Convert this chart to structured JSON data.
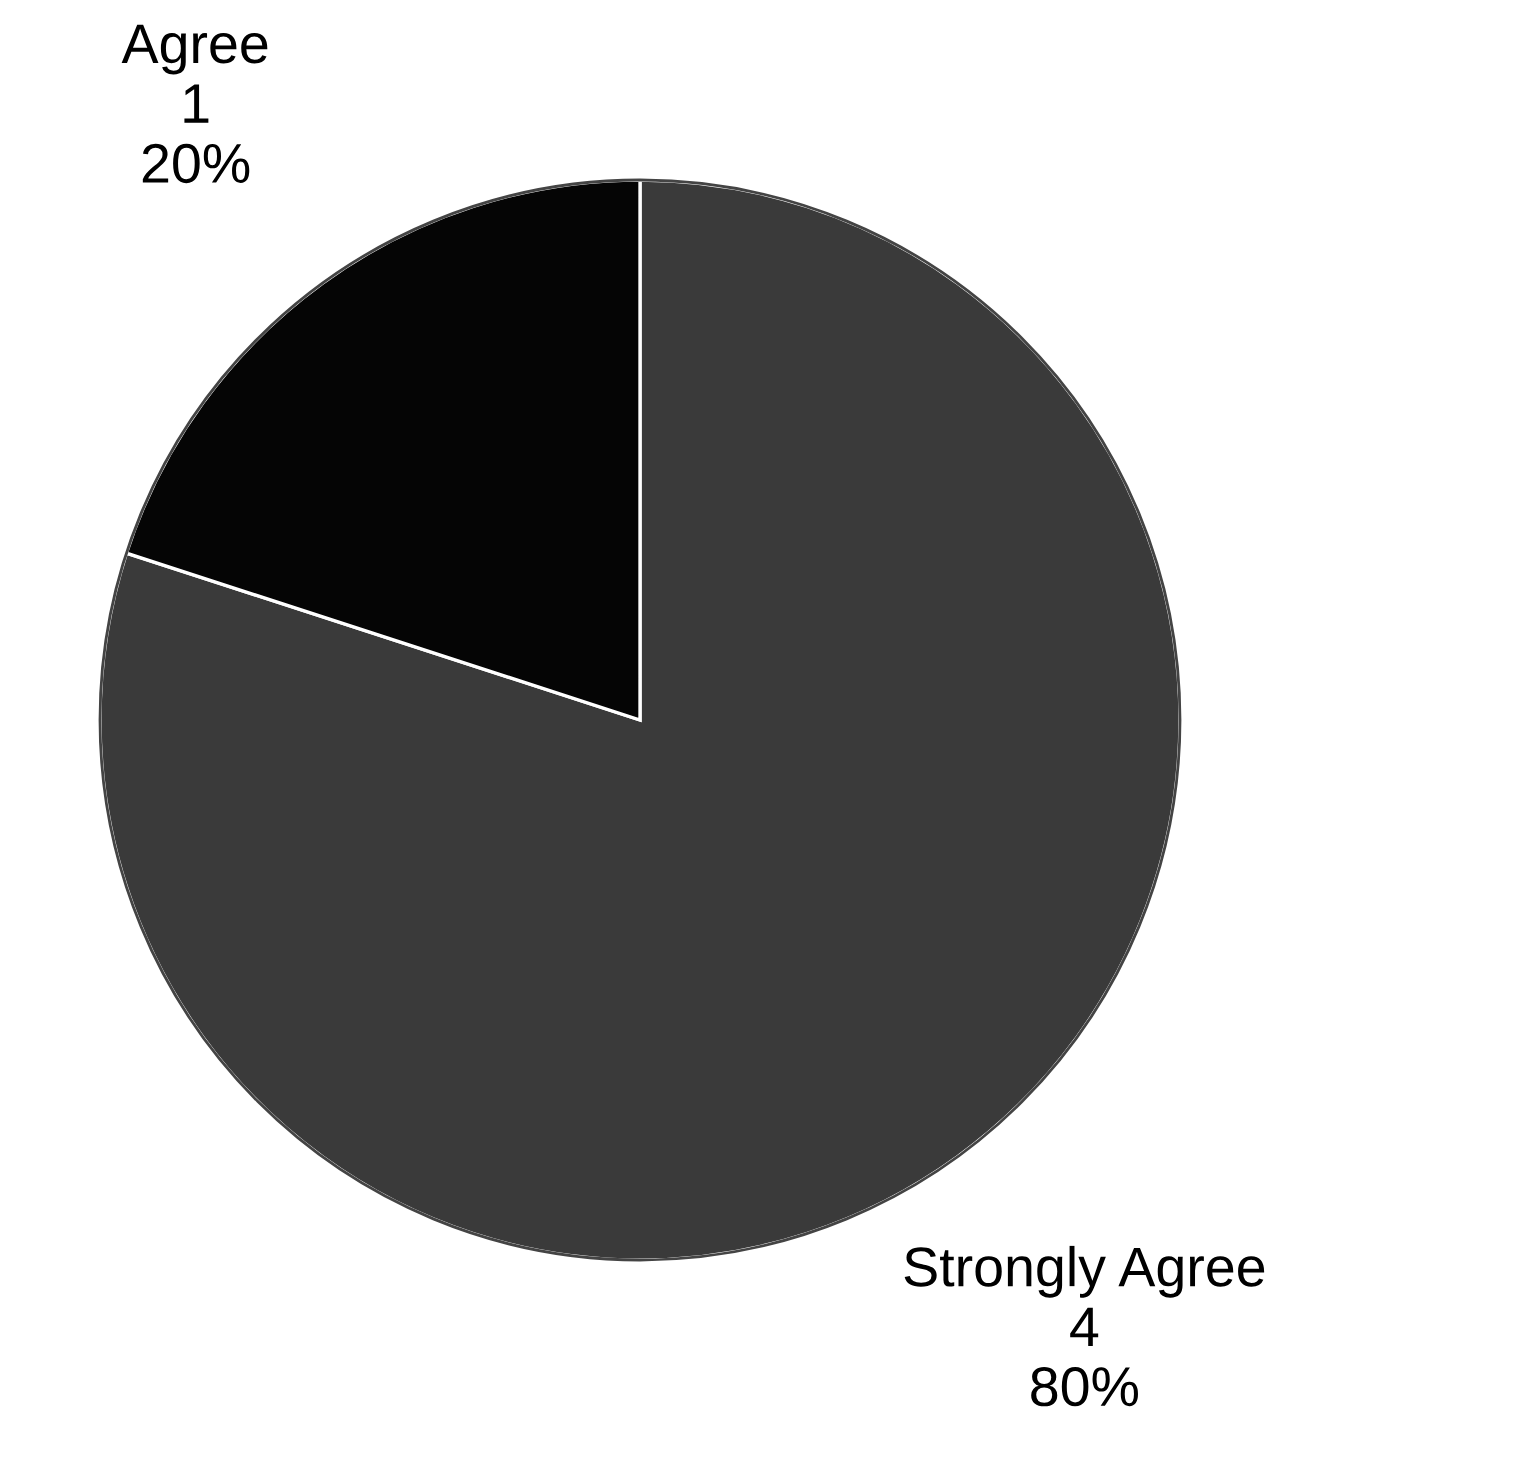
{
  "chart_data": {
    "type": "pie",
    "categories": [
      "Strongly Agree",
      "Agree"
    ],
    "values": [
      80,
      20
    ],
    "colors": [
      "#3a3a3a",
      "#050505"
    ],
    "value_labels": [
      "4\n80%",
      "1\n20%"
    ]
  }
}
